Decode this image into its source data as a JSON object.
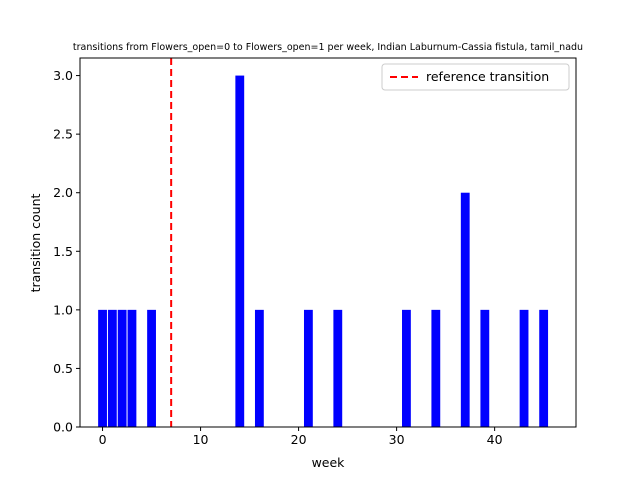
{
  "chart_data": {
    "type": "bar",
    "title": "transitions from Flowers_open=0 to Flowers_open=1 per week, Indian Laburnum-Cassia fistula, tamil_nadu",
    "xlabel": "week",
    "ylabel": "transition count",
    "xlim": [
      -2.3,
      48.3
    ],
    "ylim": [
      0,
      3.15
    ],
    "xticks": [
      0,
      10,
      20,
      30,
      40
    ],
    "yticks": [
      "0.0",
      "0.5",
      "1.0",
      "1.5",
      "2.0",
      "2.5",
      "3.0"
    ],
    "bar_color": "#0000ff",
    "bar_width": 0.9,
    "bars": [
      {
        "week": 0,
        "count": 1
      },
      {
        "week": 1,
        "count": 1
      },
      {
        "week": 2,
        "count": 1
      },
      {
        "week": 3,
        "count": 1
      },
      {
        "week": 5,
        "count": 1
      },
      {
        "week": 14,
        "count": 3
      },
      {
        "week": 16,
        "count": 1
      },
      {
        "week": 21,
        "count": 1
      },
      {
        "week": 24,
        "count": 1
      },
      {
        "week": 31,
        "count": 1
      },
      {
        "week": 34,
        "count": 1
      },
      {
        "week": 37,
        "count": 2
      },
      {
        "week": 39,
        "count": 1
      },
      {
        "week": 43,
        "count": 1
      },
      {
        "week": 45,
        "count": 1
      }
    ],
    "reference_line": {
      "week": 7,
      "label": "reference transition",
      "color": "#ff0000"
    },
    "legend_position": "top-right",
    "grid": false
  }
}
